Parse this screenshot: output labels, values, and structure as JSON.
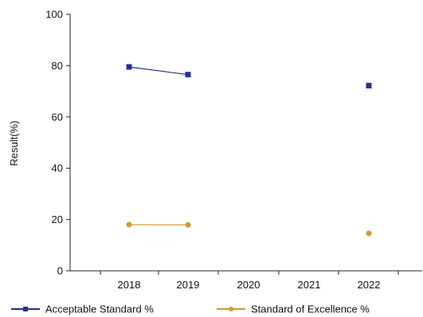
{
  "chart_data": {
    "type": "line",
    "title": "",
    "xlabel": "",
    "ylabel": "Result(%)",
    "categories": [
      "2018",
      "2019",
      "2020",
      "2021",
      "2022"
    ],
    "ylim": [
      0,
      100
    ],
    "yticks": [
      0,
      20,
      40,
      60,
      80,
      100
    ],
    "grid": false,
    "legend_position": "bottom",
    "series": [
      {
        "name": "Acceptable Standard %",
        "color": "#2a2f9a",
        "marker": "square",
        "values": [
          79.5,
          76.5,
          null,
          null,
          72.2
        ]
      },
      {
        "name": "Standard of Excellence %",
        "color": "#d49b2c",
        "marker": "circle",
        "values": [
          18.0,
          17.9,
          null,
          null,
          14.6
        ]
      }
    ]
  }
}
